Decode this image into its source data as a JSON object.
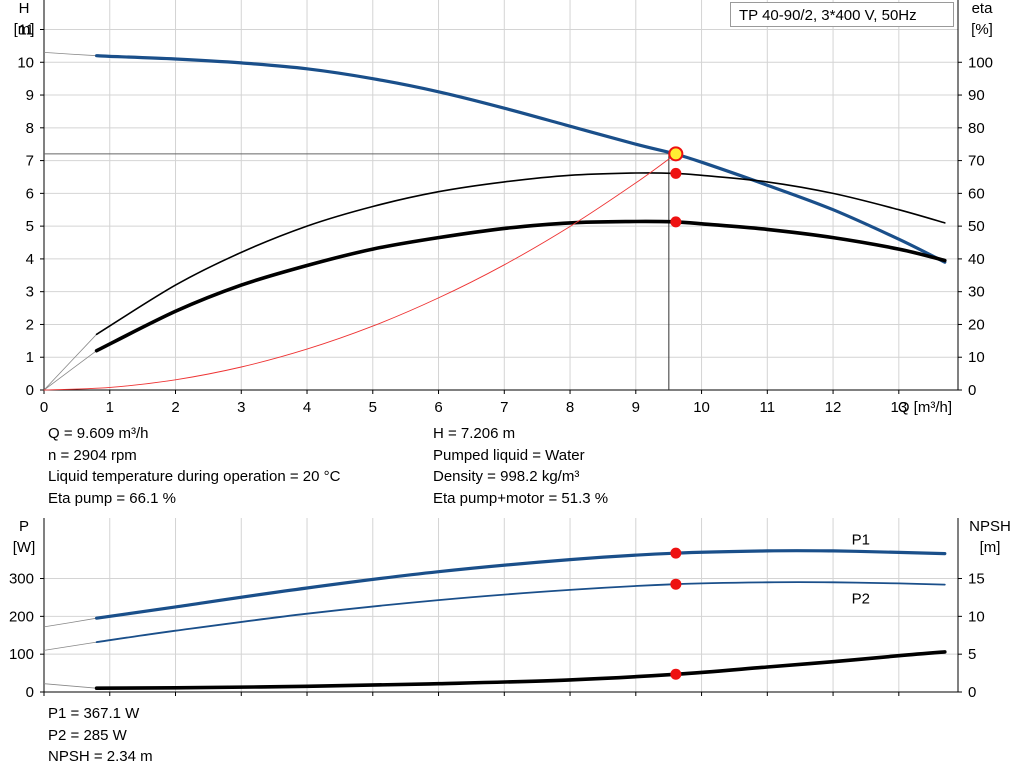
{
  "model_label": "TP 40-90/2, 3*400 V, 50Hz",
  "upper_info": {
    "left": [
      "Q = 9.609 m³/h",
      "n = 2904 rpm",
      "Liquid temperature during operation = 20 °C",
      "Eta pump = 66.1 %"
    ],
    "right": [
      "H = 7.206 m",
      "Pumped liquid = Water",
      "Density = 998.2 kg/m³",
      "Eta pump+motor = 51.3 %"
    ]
  },
  "lower_info": [
    "P1 = 367.1 W",
    "P2 = 285 W",
    "NPSH = 2.34 m"
  ],
  "colors": {
    "blue": "#1a4f8a",
    "black": "#000000",
    "red_point": "#ee1111",
    "red_line": "#ee3333",
    "grid": "#d4d4d4",
    "yellow": "#ffee33"
  },
  "chart_data": [
    {
      "type": "line",
      "title": "",
      "x_axis": {
        "label": "Q [m³/h]",
        "range": [
          0,
          13.9
        ],
        "ticks": [
          0,
          1,
          2,
          3,
          4,
          5,
          6,
          7,
          8,
          9,
          10,
          11,
          12,
          13
        ]
      },
      "y_left": {
        "label_top": "H",
        "label_unit": "[m]",
        "range": [
          0,
          11.9
        ],
        "ticks": [
          0,
          1,
          2,
          3,
          4,
          5,
          6,
          7,
          8,
          9,
          10,
          11
        ]
      },
      "y_right": {
        "label_top": "eta",
        "label_unit": "[%]",
        "range": [
          0,
          119
        ],
        "ticks": [
          0,
          10,
          20,
          30,
          40,
          50,
          60,
          70,
          80,
          90,
          100
        ]
      },
      "grid": true,
      "series": [
        {
          "name": "H",
          "axis": "left",
          "style": "blue-thick",
          "x": [
            0.8,
            1,
            2,
            3,
            4,
            5,
            6,
            7,
            8,
            9,
            9.6,
            10,
            11,
            12,
            13,
            13.7
          ],
          "y": [
            10.2,
            10.18,
            10.1,
            9.98,
            9.8,
            9.5,
            9.1,
            8.6,
            8.05,
            7.5,
            7.2,
            6.95,
            6.25,
            5.5,
            4.6,
            3.9
          ],
          "ext_x": [
            0,
            0.8
          ],
          "ext_y": [
            10.3,
            10.2
          ]
        },
        {
          "name": "eta pump",
          "axis": "right",
          "style": "black-thin",
          "x": [
            0.8,
            2,
            3,
            4,
            5,
            6,
            7,
            8,
            9,
            9.6,
            10,
            11,
            12,
            13,
            13.7
          ],
          "y": [
            17,
            32,
            42,
            50,
            56,
            60.5,
            63.5,
            65.5,
            66.2,
            66.1,
            65.5,
            63.5,
            60,
            55,
            51
          ],
          "ext_x": [
            0,
            0.8
          ],
          "ext_y": [
            0,
            17
          ]
        },
        {
          "name": "eta pump+motor",
          "axis": "right",
          "style": "black-thick",
          "x": [
            0.8,
            2,
            3,
            4,
            5,
            6,
            7,
            8,
            9,
            9.6,
            10,
            11,
            12,
            13,
            13.7
          ],
          "y": [
            12,
            24,
            32,
            38,
            43,
            46.5,
            49.3,
            51,
            51.4,
            51.3,
            50.7,
            49,
            46.5,
            43,
            39.5
          ],
          "ext_x": [
            0,
            0.8
          ],
          "ext_y": [
            0,
            12
          ]
        },
        {
          "name": "system curve",
          "axis": "left",
          "style": "red-thin",
          "x": [
            0,
            1,
            2,
            3,
            4,
            5,
            6,
            7,
            8,
            9,
            9.609
          ],
          "y": [
            0,
            0.078,
            0.312,
            0.702,
            1.248,
            1.95,
            2.81,
            3.82,
            4.99,
            6.32,
            7.206
          ]
        }
      ],
      "duty_point": {
        "q": 9.609,
        "h": 7.206,
        "eta_pump": 66.1,
        "eta_total": 51.3
      }
    },
    {
      "type": "line",
      "title": "",
      "x_axis": {
        "range": [
          0,
          13.9
        ]
      },
      "y_left": {
        "label_top": "P",
        "label_unit": "[W]",
        "range": [
          0,
          460
        ],
        "ticks": [
          0,
          100,
          200,
          300
        ]
      },
      "y_right": {
        "label_top": "NPSH",
        "label_unit": "[m]",
        "range": [
          0,
          23
        ],
        "ticks": [
          0,
          5,
          10,
          15
        ]
      },
      "grid": true,
      "series": [
        {
          "name": "P1",
          "axis": "left",
          "style": "blue-thick",
          "x": [
            0.8,
            2,
            4,
            6,
            8,
            9.6,
            11,
            12,
            13,
            13.7
          ],
          "y": [
            195,
            225,
            275,
            318,
            350,
            367,
            373,
            373,
            369,
            366
          ],
          "ext_x": [
            0,
            0.8
          ],
          "ext_y": [
            172,
            195
          ]
        },
        {
          "name": "P2",
          "axis": "left",
          "style": "blue-thin",
          "x": [
            0.8,
            2,
            4,
            6,
            8,
            9.6,
            11,
            12,
            13,
            13.7
          ],
          "y": [
            132,
            162,
            207,
            243,
            270,
            285,
            290,
            290,
            287,
            284
          ],
          "ext_x": [
            0,
            0.8
          ],
          "ext_y": [
            110,
            132
          ]
        },
        {
          "name": "NPSH",
          "axis": "right",
          "style": "black-thick",
          "x": [
            0.8,
            2,
            4,
            6,
            8,
            9.6,
            11,
            12,
            13,
            13.7
          ],
          "y": [
            0.5,
            0.55,
            0.75,
            1.1,
            1.6,
            2.34,
            3.3,
            4.0,
            4.8,
            5.3
          ],
          "ext_x": [
            0,
            0.8
          ],
          "ext_y": [
            1.1,
            0.5
          ]
        }
      ],
      "duty_point": {
        "q": 9.609,
        "p1": 367.1,
        "p2": 285,
        "npsh": 2.34
      }
    }
  ]
}
